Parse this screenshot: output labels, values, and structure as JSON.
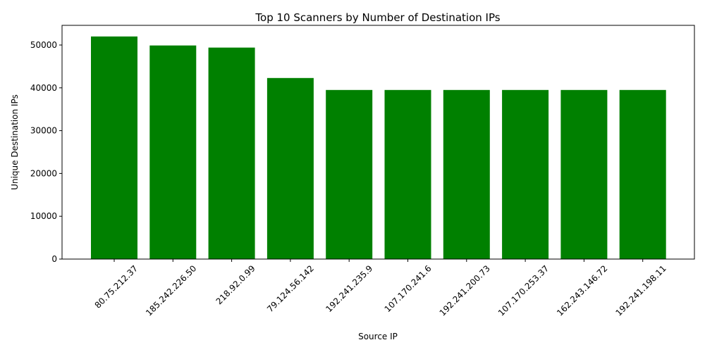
{
  "chart_data": {
    "type": "bar",
    "title": "Top 10 Scanners by Number of Destination IPs",
    "xlabel": "Source IP",
    "ylabel": "Unique Destination IPs",
    "categories": [
      "80.75.212.37",
      "185.242.226.50",
      "218.92.0.99",
      "79.124.56.142",
      "192.241.235.9",
      "107.170.241.6",
      "192.241.200.73",
      "107.170.253.37",
      "162.243.146.72",
      "192.241.198.11"
    ],
    "values": [
      52000,
      49900,
      49400,
      42300,
      39500,
      39500,
      39500,
      39500,
      39500,
      39500
    ],
    "ylim": [
      0,
      54600
    ],
    "yticks": [
      0,
      10000,
      20000,
      30000,
      40000,
      50000
    ],
    "bar_color": "#008000",
    "grid": false,
    "legend": false
  }
}
